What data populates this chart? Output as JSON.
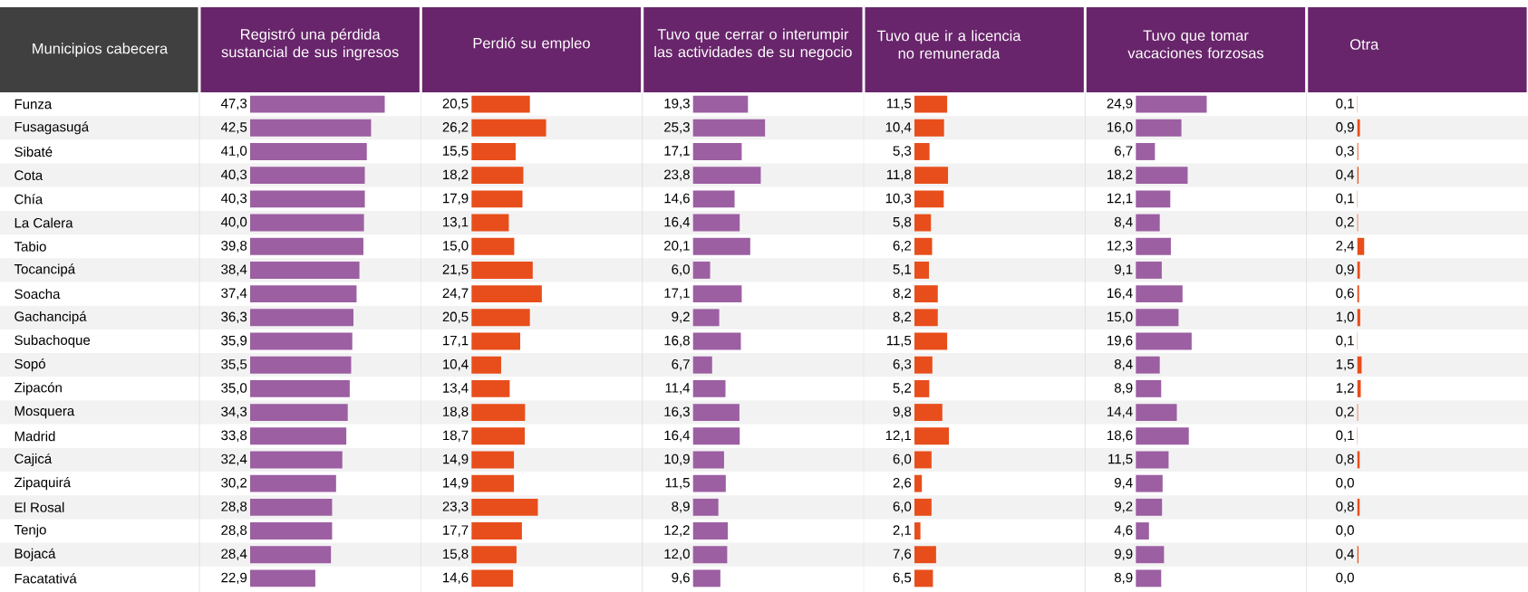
{
  "chart_data": [
    {
      "type": "bar",
      "orientation": "horizontal",
      "title": "Registró una pérdida sustancial de sus ingresos",
      "ylabel": "Municipios cabecera",
      "tick_labels": "y",
      "color": "#9c5fa2",
      "categories": [
        "Funza",
        "Fusagasugá",
        "Sibaté",
        "Cota",
        "Chía",
        "La Calera",
        "Tabio",
        "Tocancipá",
        "Soacha",
        "Gachancipá",
        "Subachoque",
        "Sopó",
        "Zipacón",
        "Mosquera",
        "Madrid",
        "Cajicá",
        "Zipaquirá",
        "El Rosal",
        "Tenjo",
        "Bojacá",
        "Facatativá"
      ],
      "values": [
        47.3,
        42.5,
        41.0,
        40.3,
        40.3,
        40.0,
        39.8,
        38.4,
        37.4,
        36.3,
        35.9,
        35.5,
        35.0,
        34.3,
        33.8,
        32.4,
        30.2,
        28.8,
        28.8,
        28.4,
        22.9
      ],
      "value_labels": [
        "47,3",
        "42,5",
        "41,0",
        "40,3",
        "40,3",
        "40,0",
        "39,8",
        "38,4",
        "37,4",
        "36,3",
        "35,9",
        "35,5",
        "35,0",
        "34,3",
        "33,8",
        "32,4",
        "30,2",
        "28,8",
        "28,8",
        "28,4",
        "22,9"
      ]
    },
    {
      "type": "bar",
      "orientation": "horizontal",
      "title": "Perdió su empleo",
      "tick_labels": false,
      "color": "#e84e1b",
      "values": [
        20.5,
        26.2,
        15.5,
        18.2,
        17.9,
        13.1,
        15.0,
        21.5,
        24.7,
        20.5,
        17.1,
        10.4,
        13.4,
        18.8,
        18.7,
        14.9,
        14.9,
        23.3,
        17.7,
        15.8,
        14.6
      ],
      "value_labels": [
        "20,5",
        "26,2",
        "15,5",
        "18,2",
        "17,9",
        "13,1",
        "15,0",
        "21,5",
        "24,7",
        "20,5",
        "17,1",
        "10,4",
        "13,4",
        "18,8",
        "18,7",
        "14,9",
        "14,9",
        "23,3",
        "17,7",
        "15,8",
        "14,6"
      ]
    },
    {
      "type": "bar",
      "orientation": "horizontal",
      "title": "Tuvo que cerrar o interumpir las actividades de su negocio",
      "tick_labels": false,
      "color": "#9c5fa2",
      "values": [
        19.3,
        25.3,
        17.1,
        23.8,
        14.6,
        16.4,
        20.1,
        6.0,
        17.1,
        9.2,
        16.8,
        6.7,
        11.4,
        16.3,
        16.4,
        10.9,
        11.5,
        8.9,
        12.2,
        12.0,
        9.6
      ],
      "value_labels": [
        "19,3",
        "25,3",
        "17,1",
        "23,8",
        "14,6",
        "16,4",
        "20,1",
        "6,0",
        "17,1",
        "9,2",
        "16,8",
        "6,7",
        "11,4",
        "16,3",
        "16,4",
        "10,9",
        "11,5",
        "8,9",
        "12,2",
        "12,0",
        "9,6"
      ]
    },
    {
      "type": "bar",
      "orientation": "horizontal",
      "title": "Tuvo que ir a licencia no remunerada",
      "tick_labels": false,
      "color": "#e84e1b",
      "values": [
        11.5,
        10.4,
        5.3,
        11.8,
        10.3,
        5.8,
        6.2,
        5.1,
        8.2,
        8.2,
        11.5,
        6.3,
        5.2,
        9.8,
        12.1,
        6.0,
        2.6,
        6.0,
        2.1,
        7.6,
        6.5
      ],
      "value_labels": [
        "11,5",
        "10,4",
        "5,3",
        "11,8",
        "10,3",
        "5,8",
        "6,2",
        "5,1",
        "8,2",
        "8,2",
        "11,5",
        "6,3",
        "5,2",
        "9,8",
        "12,1",
        "6,0",
        "2,6",
        "6,0",
        "2,1",
        "7,6",
        "6,5"
      ]
    },
    {
      "type": "bar",
      "orientation": "horizontal",
      "title": "Tuvo que tomar vacaciones forzosas",
      "tick_labels": false,
      "color": "#9c5fa2",
      "values": [
        24.9,
        16.0,
        6.7,
        18.2,
        12.1,
        8.4,
        12.3,
        9.1,
        16.4,
        15.0,
        19.6,
        8.4,
        8.9,
        14.4,
        18.6,
        11.5,
        9.4,
        9.2,
        4.6,
        9.9,
        8.9
      ],
      "value_labels": [
        "24,9",
        "16,0",
        "6,7",
        "18,2",
        "12,1",
        "8,4",
        "12,3",
        "9,1",
        "16,4",
        "15,0",
        "19,6",
        "8,4",
        "8,9",
        "14,4",
        "18,6",
        "11,5",
        "9,4",
        "9,2",
        "4,6",
        "9,9",
        "8,9"
      ]
    },
    {
      "type": "bar",
      "orientation": "horizontal",
      "title": "Otra",
      "tick_labels": false,
      "color": "#e84e1b",
      "values": [
        0.1,
        0.9,
        0.3,
        0.4,
        0.1,
        0.2,
        2.4,
        0.9,
        0.6,
        1.0,
        0.1,
        1.5,
        1.2,
        0.2,
        0.1,
        0.8,
        0.0,
        0.8,
        0.0,
        0.4,
        0.0
      ],
      "value_labels": [
        "0,1",
        "0,9",
        "0,3",
        "0,4",
        "0,1",
        "0,2",
        "2,4",
        "0,9",
        "0,6",
        "1,0",
        "0,1",
        "1,5",
        "1,2",
        "0,2",
        "0,1",
        "0,8",
        "0,0",
        "0,8",
        "0,0",
        "0,4",
        "0,0"
      ]
    }
  ]
}
